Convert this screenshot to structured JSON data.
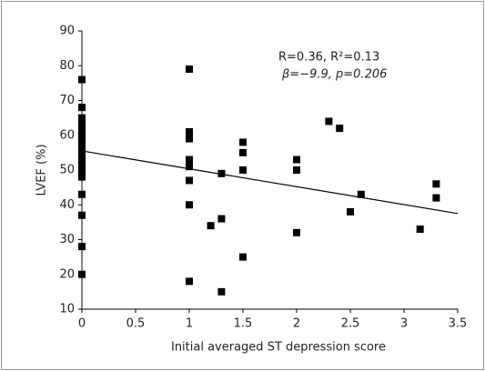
{
  "chart_data": {
    "type": "scatter",
    "x_label": "Initial averaged ST depression score",
    "y_label": "LVEF (%)",
    "annotations": [
      "R=0.36,   R²=0.13",
      "β=−9.9,   p=0.206"
    ],
    "x": [
      0,
      0,
      0,
      0,
      0,
      0,
      0,
      0,
      0,
      0,
      0,
      0,
      0,
      0,
      0,
      0,
      0,
      0,
      0,
      0,
      0,
      0,
      0,
      1,
      1,
      1,
      1,
      1,
      1,
      1,
      1,
      1,
      1,
      1.2,
      1.3,
      1.3,
      1.3,
      1.5,
      1.5,
      1.5,
      1.5,
      2,
      2,
      2,
      2.3,
      2.4,
      2.5,
      2.6,
      3.15,
      3.3,
      3.3
    ],
    "values": [
      76,
      68,
      65,
      64,
      63,
      62,
      61,
      60,
      59,
      58,
      57,
      56,
      55,
      54,
      53,
      51,
      50,
      49,
      48,
      43,
      37,
      28,
      20,
      79,
      61,
      60,
      59,
      53,
      52,
      51,
      47,
      40,
      18,
      34,
      49,
      36,
      15,
      58,
      55,
      50,
      25,
      53,
      50,
      32,
      64,
      62,
      38,
      43,
      33,
      46,
      42
    ],
    "color": "#000000",
    "trendline": {
      "x": [
        0,
        3.5
      ],
      "y": [
        55.5,
        37.5
      ],
      "color": "#000000"
    },
    "xlim": [
      0,
      3.5
    ],
    "xticks": [
      0,
      0.5,
      1,
      1.5,
      2,
      2.5,
      3,
      3.5
    ],
    "ylim": [
      10,
      90
    ],
    "yticks": [
      10,
      20,
      30,
      40,
      50,
      60,
      70,
      80,
      90
    ]
  }
}
